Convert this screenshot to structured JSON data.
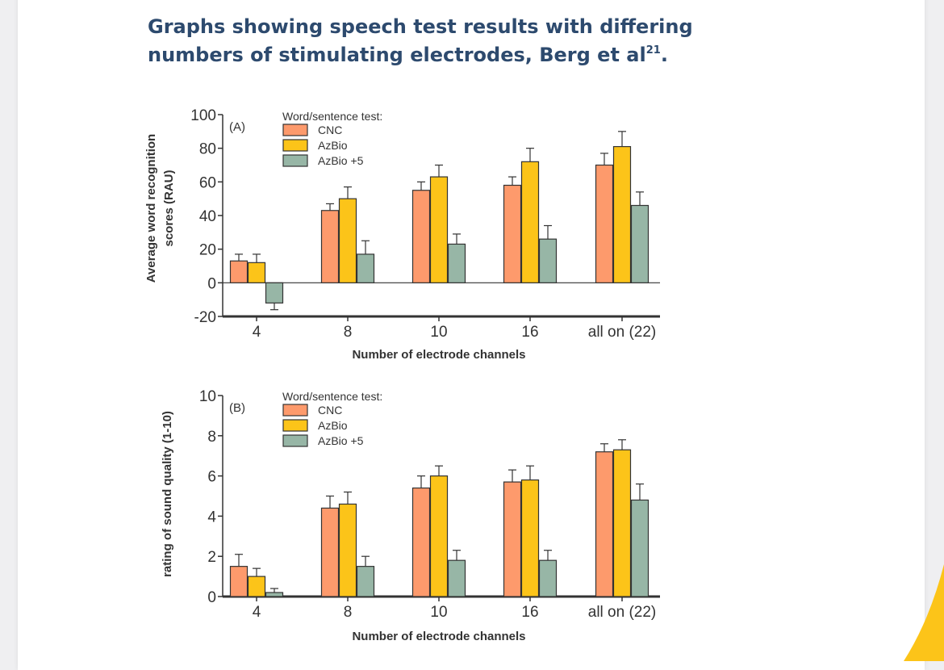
{
  "header": {
    "title_main": "Graphs showing speech test results with differing numbers of stimulating electrodes, Berg et al",
    "title_ref": "21",
    "title_end": "."
  },
  "colors": {
    "cnc": "#fd9a6c",
    "azbio": "#fcc419",
    "azbio5": "#97b6a6",
    "axis": "#333333",
    "title": "#2d4a6e",
    "accent_corner": "#fcc419"
  },
  "chart_data": [
    {
      "type": "bar",
      "panel_label": "(A)",
      "categories": [
        "4",
        "8",
        "10",
        "16",
        "all on (22)"
      ],
      "series": [
        {
          "name": "CNC",
          "values": [
            13,
            43,
            55,
            58,
            70
          ],
          "errors": [
            4,
            4,
            5,
            5,
            7
          ]
        },
        {
          "name": "AzBio",
          "values": [
            12,
            50,
            63,
            72,
            81
          ],
          "errors": [
            5,
            7,
            7,
            8,
            9
          ]
        },
        {
          "name": "AzBio +5",
          "values": [
            -12,
            17,
            23,
            26,
            46
          ],
          "errors": [
            4,
            8,
            6,
            8,
            8
          ]
        }
      ],
      "legend_title": "Word/sentence test:",
      "xlabel": "Number of electrode channels",
      "ylabel": [
        "Average word recognition",
        "scores (RAU)"
      ],
      "ylim": [
        -20,
        100
      ],
      "yticks": [
        -20,
        0,
        20,
        40,
        60,
        80,
        100
      ],
      "legend_placement": "top-left",
      "grid": false
    },
    {
      "type": "bar",
      "panel_label": "(B)",
      "categories": [
        "4",
        "8",
        "10",
        "16",
        "all on (22)"
      ],
      "series": [
        {
          "name": "CNC",
          "values": [
            1.5,
            4.4,
            5.4,
            5.7,
            7.2
          ],
          "errors": [
            0.6,
            0.6,
            0.6,
            0.6,
            0.4
          ]
        },
        {
          "name": "AzBio",
          "values": [
            1.0,
            4.6,
            6.0,
            5.8,
            7.3
          ],
          "errors": [
            0.4,
            0.6,
            0.5,
            0.7,
            0.5
          ]
        },
        {
          "name": "AzBio +5",
          "values": [
            0.2,
            1.5,
            1.8,
            1.8,
            4.8
          ],
          "errors": [
            0.2,
            0.5,
            0.5,
            0.5,
            0.8
          ]
        }
      ],
      "legend_title": "Word/sentence test:",
      "xlabel": "Number of electrode channels",
      "ylabel": [
        "rating of sound quality (1-10)"
      ],
      "ylim": [
        0,
        10
      ],
      "yticks": [
        0,
        2,
        4,
        6,
        8,
        10
      ],
      "legend_placement": "top-left",
      "grid": false
    }
  ]
}
